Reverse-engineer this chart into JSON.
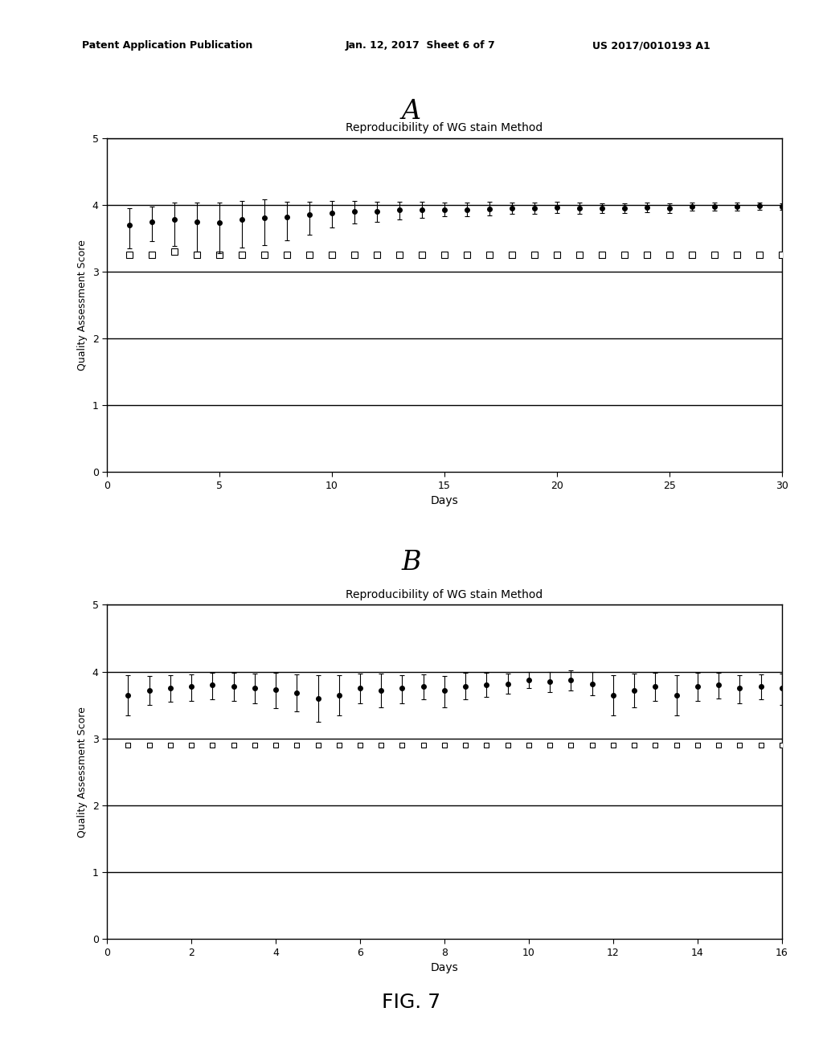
{
  "title_A": "Reproducibility of WG stain Method",
  "title_B": "Reproducibility of WG stain Method",
  "xlabel": "Days",
  "ylabel": "Quality Assessment Score",
  "label_A": "A",
  "label_B": "B",
  "fig_label": "FIG. 7",
  "patent_left": "Patent Application Publication",
  "patent_mid": "Jan. 12, 2017  Sheet 6 of 7",
  "patent_right": "US 2017/0010193 A1",
  "panel_A": {
    "xlim": [
      0,
      30
    ],
    "ylim": [
      0,
      5
    ],
    "xticks": [
      0,
      5,
      10,
      15,
      20,
      25,
      30
    ],
    "yticks": [
      0,
      1,
      2,
      3,
      4,
      5
    ],
    "dot_x": [
      1,
      2,
      3,
      4,
      5,
      6,
      7,
      8,
      9,
      10,
      11,
      12,
      13,
      14,
      15,
      16,
      17,
      18,
      19,
      20,
      21,
      22,
      23,
      24,
      25,
      26,
      27,
      28,
      29,
      30
    ],
    "dot_y": [
      3.7,
      3.75,
      3.78,
      3.75,
      3.73,
      3.78,
      3.8,
      3.82,
      3.85,
      3.88,
      3.9,
      3.9,
      3.92,
      3.92,
      3.93,
      3.93,
      3.94,
      3.95,
      3.95,
      3.96,
      3.95,
      3.95,
      3.95,
      3.96,
      3.95,
      3.97,
      3.97,
      3.97,
      3.98,
      3.97
    ],
    "dot_yerr_upper": [
      0.25,
      0.22,
      0.25,
      0.28,
      0.3,
      0.28,
      0.28,
      0.22,
      0.2,
      0.18,
      0.16,
      0.14,
      0.12,
      0.12,
      0.1,
      0.1,
      0.1,
      0.08,
      0.08,
      0.08,
      0.08,
      0.07,
      0.07,
      0.07,
      0.07,
      0.06,
      0.06,
      0.06,
      0.05,
      0.05
    ],
    "dot_yerr_lower": [
      0.35,
      0.3,
      0.4,
      0.45,
      0.45,
      0.42,
      0.4,
      0.35,
      0.3,
      0.22,
      0.18,
      0.15,
      0.14,
      0.12,
      0.1,
      0.1,
      0.1,
      0.08,
      0.08,
      0.08,
      0.08,
      0.07,
      0.07,
      0.07,
      0.07,
      0.06,
      0.06,
      0.06,
      0.05,
      0.05
    ],
    "square_x": [
      1,
      2,
      3,
      4,
      5,
      6,
      7,
      8,
      9,
      10,
      11,
      12,
      13,
      14,
      15,
      16,
      17,
      18,
      19,
      20,
      21,
      22,
      23,
      24,
      25,
      26,
      27,
      28,
      29,
      30
    ],
    "square_y": [
      3.25,
      3.25,
      3.3,
      3.25,
      3.25,
      3.25,
      3.25,
      3.25,
      3.25,
      3.25,
      3.25,
      3.25,
      3.25,
      3.25,
      3.25,
      3.25,
      3.25,
      3.25,
      3.25,
      3.25,
      3.25,
      3.25,
      3.25,
      3.25,
      3.25,
      3.25,
      3.25,
      3.25,
      3.25,
      3.25
    ]
  },
  "panel_B": {
    "xlim": [
      0,
      16
    ],
    "ylim": [
      0,
      5
    ],
    "xticks": [
      0,
      2,
      4,
      6,
      8,
      10,
      12,
      14,
      16
    ],
    "yticks": [
      0,
      1,
      2,
      3,
      4,
      5
    ],
    "dot_x": [
      0.5,
      1,
      1.5,
      2,
      2.5,
      3,
      3.5,
      4,
      4.5,
      5,
      5.5,
      6,
      6.5,
      7,
      7.5,
      8,
      8.5,
      9,
      9.5,
      10,
      10.5,
      11,
      11.5,
      12,
      12.5,
      13,
      13.5,
      14,
      14.5,
      15,
      15.5,
      16
    ],
    "dot_y": [
      3.65,
      3.72,
      3.75,
      3.78,
      3.8,
      3.78,
      3.75,
      3.73,
      3.68,
      3.6,
      3.65,
      3.75,
      3.72,
      3.75,
      3.78,
      3.72,
      3.78,
      3.8,
      3.82,
      3.88,
      3.85,
      3.87,
      3.82,
      3.65,
      3.72,
      3.78,
      3.65,
      3.78,
      3.8,
      3.75,
      3.78,
      3.75
    ],
    "dot_yerr_upper": [
      0.3,
      0.22,
      0.2,
      0.18,
      0.18,
      0.2,
      0.22,
      0.25,
      0.28,
      0.35,
      0.3,
      0.22,
      0.25,
      0.2,
      0.18,
      0.22,
      0.2,
      0.18,
      0.15,
      0.12,
      0.15,
      0.15,
      0.18,
      0.3,
      0.25,
      0.2,
      0.3,
      0.2,
      0.18,
      0.2,
      0.18,
      0.22
    ],
    "dot_yerr_lower": [
      0.3,
      0.22,
      0.2,
      0.22,
      0.22,
      0.22,
      0.22,
      0.28,
      0.28,
      0.35,
      0.3,
      0.22,
      0.25,
      0.22,
      0.2,
      0.25,
      0.2,
      0.18,
      0.15,
      0.12,
      0.15,
      0.15,
      0.18,
      0.3,
      0.25,
      0.22,
      0.3,
      0.22,
      0.2,
      0.22,
      0.2,
      0.25
    ],
    "square_x": [
      0.5,
      1,
      1.5,
      2,
      2.5,
      3,
      3.5,
      4,
      4.5,
      5,
      5.5,
      6,
      6.5,
      7,
      7.5,
      8,
      8.5,
      9,
      9.5,
      10,
      10.5,
      11,
      11.5,
      12,
      12.5,
      13,
      13.5,
      14,
      14.5,
      15,
      15.5,
      16
    ],
    "square_y": [
      2.9,
      2.9,
      2.9,
      2.9,
      2.9,
      2.9,
      2.9,
      2.9,
      2.9,
      2.9,
      2.9,
      2.9,
      2.9,
      2.9,
      2.9,
      2.9,
      2.9,
      2.9,
      2.9,
      2.9,
      2.9,
      2.9,
      2.9,
      2.9,
      2.9,
      2.9,
      2.9,
      2.9,
      2.9,
      2.9,
      2.9,
      2.9
    ]
  }
}
